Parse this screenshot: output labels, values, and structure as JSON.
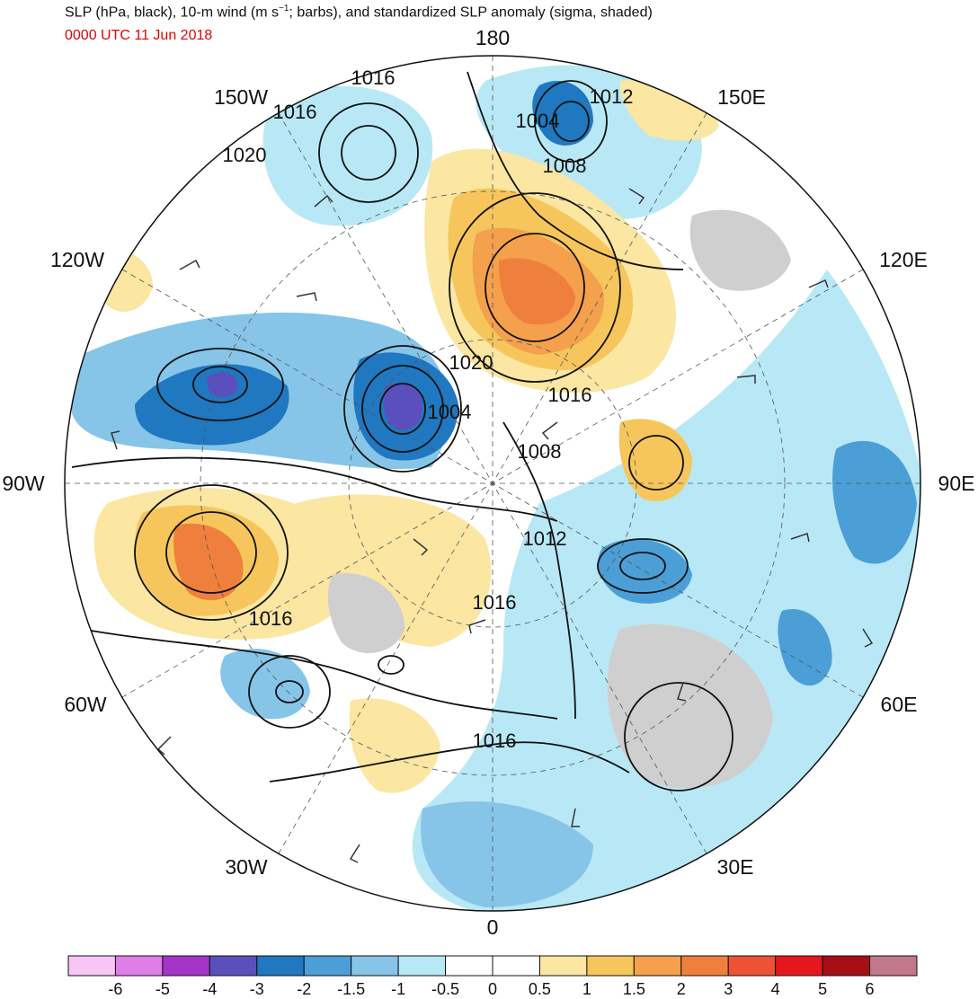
{
  "header": {
    "title": "SLP (hPa, black), 10-m wind (m s",
    "title_sup": "−1",
    "title_tail": "; barbs), and standardized SLP anomaly (sigma, shaded)",
    "valid_time": "0000 UTC 11 Jun 2018"
  },
  "map": {
    "projection": "north-polar-stereographic",
    "center": "North Pole",
    "longitude_labels": [
      {
        "text": "180"
      },
      {
        "text": "150E"
      },
      {
        "text": "120E"
      },
      {
        "text": "90E"
      },
      {
        "text": "60E"
      },
      {
        "text": "30E"
      },
      {
        "text": "0"
      },
      {
        "text": "30W"
      },
      {
        "text": "60W"
      },
      {
        "text": "90W"
      },
      {
        "text": "120W"
      },
      {
        "text": "150W"
      }
    ],
    "isobar_labels": [
      {
        "text": "1016"
      },
      {
        "text": "1016"
      },
      {
        "text": "1020"
      },
      {
        "text": "1004"
      },
      {
        "text": "1012"
      },
      {
        "text": "1008"
      },
      {
        "text": "1020"
      },
      {
        "text": "1016"
      },
      {
        "text": "1004"
      },
      {
        "text": "1008"
      },
      {
        "text": "1012"
      },
      {
        "text": "1016"
      },
      {
        "text": "1016"
      },
      {
        "text": "1016"
      }
    ]
  },
  "colorbar": {
    "ticks": [
      "-6",
      "-5",
      "-4",
      "-3",
      "-2",
      "-1.5",
      "-1",
      "-0.5",
      "0",
      "0.5",
      "1",
      "1.5",
      "2",
      "3",
      "4",
      "5",
      "6"
    ],
    "colors": [
      "#f7c6f7",
      "#e07ee8",
      "#a535c9",
      "#5b4fbe",
      "#1f78c0",
      "#4b9fd6",
      "#86c5e8",
      "#b8e8f5",
      "#ffffff",
      "#ffffff",
      "#fbe6a2",
      "#f6c65c",
      "#f4a04d",
      "#ef7f3c",
      "#ee5235",
      "#e5171d",
      "#a50f15",
      "#c2788b"
    ]
  }
}
